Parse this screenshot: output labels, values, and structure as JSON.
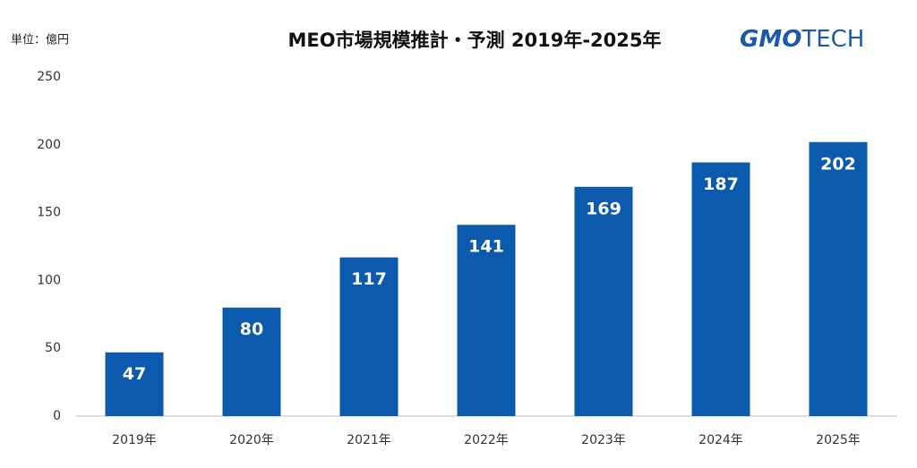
{
  "chart_data": {
    "type": "bar",
    "title": "MEO市場規模推計・予測 2019年-2025年",
    "y_axis_label": "単位：億円",
    "brand": {
      "primary": "GMO",
      "secondary": "TECH"
    },
    "categories": [
      "2019年",
      "2020年",
      "2021年",
      "2022年",
      "2023年",
      "2024年",
      "2025年"
    ],
    "values": [
      47,
      80,
      117,
      141,
      169,
      187,
      202
    ],
    "color": "#0b5aad",
    "ylim": [
      0,
      250
    ],
    "yticks": [
      0,
      50,
      100,
      150,
      200,
      250
    ],
    "grid": false
  }
}
